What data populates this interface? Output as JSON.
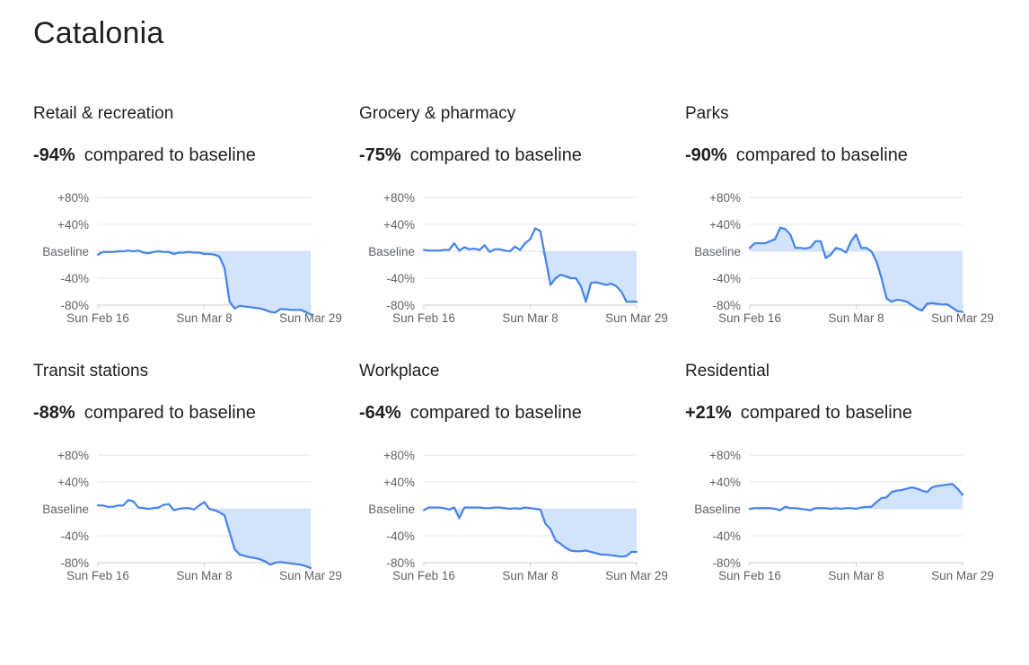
{
  "page": {
    "title": "Catalonia"
  },
  "chart_data": [
    {
      "type": "line",
      "title": "Retail & recreation",
      "headline_value": "-94%",
      "headline_label": "compared to baseline",
      "yticks": [
        {
          "value": 80,
          "label": "+80%"
        },
        {
          "value": 40,
          "label": "+40%"
        },
        {
          "value": 0,
          "label": "Baseline"
        },
        {
          "value": -40,
          "label": "-40%"
        },
        {
          "value": -80,
          "label": "-80%"
        }
      ],
      "xticks": [
        {
          "index": 0,
          "label": "Sun Feb 16"
        },
        {
          "index": 21,
          "label": "Sun Mar 8"
        },
        {
          "index": 42,
          "label": "Sun Mar 29"
        }
      ],
      "ylim": [
        -80,
        80
      ],
      "fill_between_baseline": "below",
      "series": [
        {
          "values": [
            -5,
            -1,
            -1,
            -1,
            0,
            0,
            1,
            0,
            1,
            -2,
            -3,
            -1,
            0,
            -1,
            -1,
            -4,
            -2,
            -2,
            -1,
            -2,
            -2,
            -4,
            -4,
            -5,
            -8,
            -25,
            -75,
            -85,
            -81,
            -82,
            -83,
            -84,
            -85,
            -87,
            -90,
            -91,
            -86,
            -86,
            -87,
            -87,
            -87,
            -90,
            -94
          ]
        }
      ]
    },
    {
      "type": "line",
      "title": "Grocery & pharmacy",
      "headline_value": "-75%",
      "headline_label": "compared to baseline",
      "yticks": [
        {
          "value": 80,
          "label": "+80%"
        },
        {
          "value": 40,
          "label": "+40%"
        },
        {
          "value": 0,
          "label": "Baseline"
        },
        {
          "value": -40,
          "label": "-40%"
        },
        {
          "value": -80,
          "label": "-80%"
        }
      ],
      "xticks": [
        {
          "index": 0,
          "label": "Sun Feb 16"
        },
        {
          "index": 21,
          "label": "Sun Mar 8"
        },
        {
          "index": 42,
          "label": "Sun Mar 29"
        }
      ],
      "ylim": [
        -80,
        80
      ],
      "fill_between_baseline": "below",
      "series": [
        {
          "values": [
            2,
            1,
            1,
            1,
            2,
            2,
            12,
            1,
            6,
            3,
            4,
            2,
            9,
            -1,
            3,
            3,
            1,
            0,
            7,
            2,
            12,
            18,
            34,
            30,
            -10,
            -50,
            -40,
            -35,
            -37,
            -40,
            -40,
            -52,
            -75,
            -47,
            -46,
            -48,
            -50,
            -48,
            -52,
            -60,
            -75,
            -75,
            -75
          ]
        }
      ]
    },
    {
      "type": "line",
      "title": "Parks",
      "headline_value": "-90%",
      "headline_label": "compared to baseline",
      "yticks": [
        {
          "value": 80,
          "label": "+80%"
        },
        {
          "value": 40,
          "label": "+40%"
        },
        {
          "value": 0,
          "label": "Baseline"
        },
        {
          "value": -40,
          "label": "-40%"
        },
        {
          "value": -80,
          "label": "-80%"
        }
      ],
      "xticks": [
        {
          "index": 0,
          "label": "Sun Feb 16"
        },
        {
          "index": 21,
          "label": "Sun Mar 8"
        },
        {
          "index": 42,
          "label": "Sun Mar 29"
        }
      ],
      "ylim": [
        -80,
        80
      ],
      "fill_between_baseline": "both",
      "series": [
        {
          "values": [
            5,
            12,
            12,
            12,
            15,
            18,
            35,
            33,
            25,
            5,
            5,
            4,
            6,
            15,
            15,
            -10,
            -5,
            5,
            3,
            -2,
            15,
            25,
            5,
            5,
            0,
            -15,
            -40,
            -70,
            -75,
            -72,
            -73,
            -75,
            -80,
            -85,
            -88,
            -78,
            -77,
            -78,
            -79,
            -79,
            -84,
            -89,
            -90
          ]
        }
      ]
    },
    {
      "type": "line",
      "title": "Transit stations",
      "headline_value": "-88%",
      "headline_label": "compared to baseline",
      "yticks": [
        {
          "value": 80,
          "label": "+80%"
        },
        {
          "value": 40,
          "label": "+40%"
        },
        {
          "value": 0,
          "label": "Baseline"
        },
        {
          "value": -40,
          "label": "-40%"
        },
        {
          "value": -80,
          "label": "-80%"
        }
      ],
      "xticks": [
        {
          "index": 0,
          "label": "Sun Feb 16"
        },
        {
          "index": 21,
          "label": "Sun Mar 8"
        },
        {
          "index": 42,
          "label": "Sun Mar 29"
        }
      ],
      "ylim": [
        -80,
        80
      ],
      "fill_between_baseline": "below",
      "series": [
        {
          "values": [
            5,
            5,
            3,
            3,
            5,
            5,
            13,
            11,
            2,
            1,
            0,
            1,
            2,
            6,
            7,
            -2,
            0,
            1,
            1,
            -1,
            5,
            10,
            0,
            -2,
            -5,
            -10,
            -35,
            -60,
            -68,
            -70,
            -72,
            -73,
            -75,
            -78,
            -83,
            -80,
            -79,
            -80,
            -81,
            -82,
            -83,
            -85,
            -88
          ]
        }
      ]
    },
    {
      "type": "line",
      "title": "Workplace",
      "headline_value": "-64%",
      "headline_label": "compared to baseline",
      "yticks": [
        {
          "value": 80,
          "label": "+80%"
        },
        {
          "value": 40,
          "label": "+40%"
        },
        {
          "value": 0,
          "label": "Baseline"
        },
        {
          "value": -40,
          "label": "-40%"
        },
        {
          "value": -80,
          "label": "-80%"
        }
      ],
      "xticks": [
        {
          "index": 0,
          "label": "Sun Feb 16"
        },
        {
          "index": 21,
          "label": "Sun Mar 8"
        },
        {
          "index": 42,
          "label": "Sun Mar 29"
        }
      ],
      "ylim": [
        -80,
        80
      ],
      "fill_between_baseline": "below",
      "series": [
        {
          "values": [
            -2,
            2,
            2,
            2,
            1,
            -1,
            2,
            -14,
            2,
            2,
            2,
            2,
            1,
            1,
            2,
            2,
            1,
            0,
            1,
            0,
            2,
            1,
            0,
            -1,
            -22,
            -30,
            -47,
            -52,
            -58,
            -62,
            -63,
            -63,
            -62,
            -64,
            -66,
            -68,
            -68,
            -69,
            -70,
            -71,
            -70,
            -64,
            -64
          ]
        }
      ]
    },
    {
      "type": "line",
      "title": "Residential",
      "headline_value": "+21%",
      "headline_label": "compared to baseline",
      "yticks": [
        {
          "value": 80,
          "label": "+80%"
        },
        {
          "value": 40,
          "label": "+40%"
        },
        {
          "value": 0,
          "label": "Baseline"
        },
        {
          "value": -40,
          "label": "-40%"
        },
        {
          "value": -80,
          "label": "-80%"
        }
      ],
      "xticks": [
        {
          "index": 0,
          "label": "Sun Feb 16"
        },
        {
          "index": 21,
          "label": "Sun Mar 8"
        },
        {
          "index": 42,
          "label": "Sun Mar 29"
        }
      ],
      "ylim": [
        -80,
        80
      ],
      "fill_between_baseline": "above",
      "series": [
        {
          "values": [
            0,
            1,
            1,
            1,
            1,
            0,
            -2,
            3,
            1,
            1,
            0,
            -1,
            -2,
            1,
            1,
            1,
            0,
            1,
            0,
            1,
            1,
            0,
            2,
            3,
            3,
            10,
            16,
            17,
            25,
            27,
            28,
            30,
            32,
            30,
            27,
            25,
            32,
            34,
            35,
            36,
            37,
            30,
            21
          ]
        }
      ]
    }
  ]
}
